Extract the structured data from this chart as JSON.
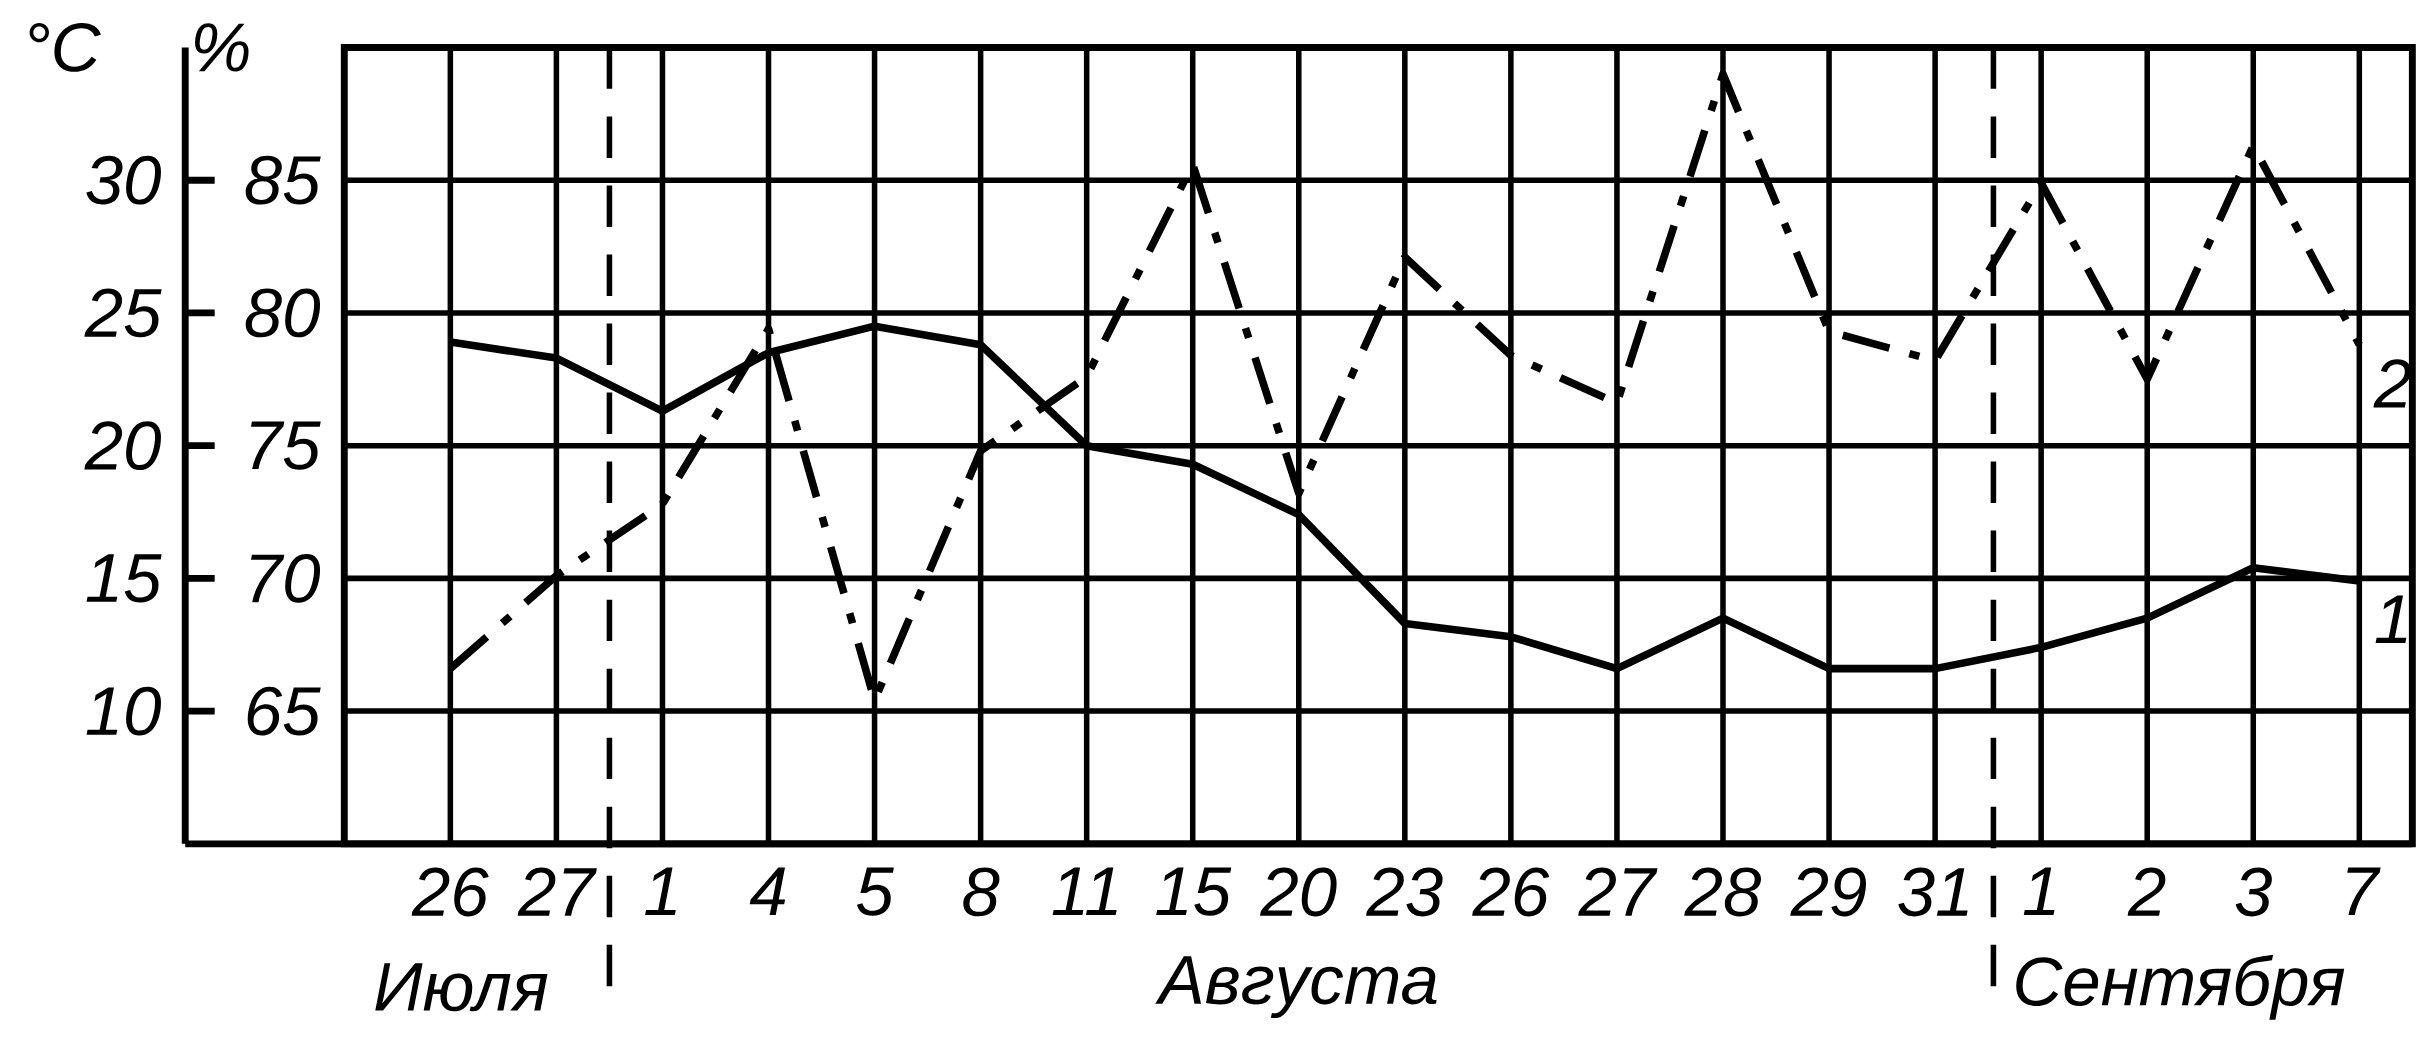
{
  "chart_data": {
    "type": "line",
    "ylabel": "°C",
    "y2label": "%",
    "categories": [
      "26",
      "27",
      "1",
      "4",
      "5",
      "8",
      "11",
      "15",
      "20",
      "23",
      "26",
      "27",
      "28",
      "29",
      "31",
      "1",
      "2",
      "3",
      "7"
    ],
    "series": [
      {
        "name": "1",
        "color": "#000000",
        "line_style": "solid",
        "values": [
          23.9,
          23.3,
          21.3,
          23.5,
          24.5,
          23.8,
          20.0,
          19.3,
          17.4,
          13.3,
          12.8,
          11.6,
          13.5,
          11.6,
          11.6,
          12.4,
          13.5,
          15.4,
          14.9
        ]
      },
      {
        "name": "2",
        "color": "#000000",
        "line_style": "dashed",
        "axis": "y2",
        "values": [
          66.6,
          70.1,
          72.8,
          79.4,
          65.4,
          74.8,
          77.6,
          85.6,
          73.2,
          82.1,
          78.4,
          76.6,
          89.0,
          79.3,
          78.2,
          84.9,
          77.5,
          86.3,
          78.8
        ]
      }
    ],
    "ylim": [
      5,
      35
    ],
    "yticks": [
      10,
      15,
      20,
      25,
      30
    ],
    "y2lim": [
      60,
      90
    ],
    "y2ticks": [
      65,
      70,
      75,
      80,
      85
    ],
    "grid": true,
    "annotations": [
      "Июля",
      "Августа",
      "Сентября"
    ]
  }
}
